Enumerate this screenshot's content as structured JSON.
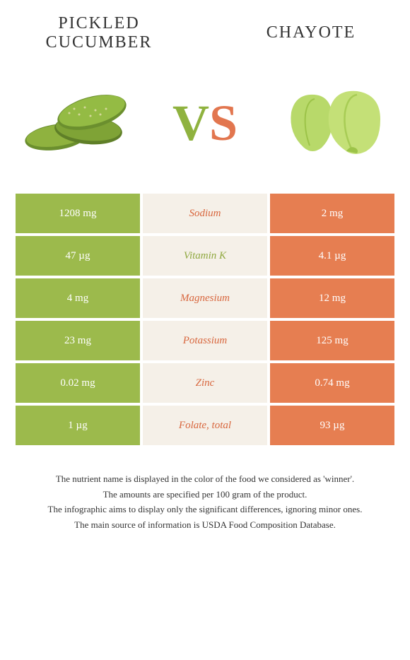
{
  "titles": {
    "left": "Pickled cucumber",
    "right": "Chayote"
  },
  "vs": {
    "v": "V",
    "s": "S"
  },
  "colors": {
    "green_bg": "#9cba4c",
    "orange_bg": "#e67e51",
    "mid_bg": "#f5f0e8",
    "txt_green": "#8fa83f",
    "txt_orange": "#d8663d",
    "vs_v": "#8fb23f",
    "vs_s": "#e2764f"
  },
  "rows": [
    {
      "left": "1208 mg",
      "label": "Sodium",
      "right": "2 mg",
      "left_bg": "green",
      "right_bg": "orange",
      "label_color": "orange"
    },
    {
      "left": "47 µg",
      "label": "Vitamin K",
      "right": "4.1 µg",
      "left_bg": "green",
      "right_bg": "orange",
      "label_color": "green"
    },
    {
      "left": "4 mg",
      "label": "Magnesium",
      "right": "12 mg",
      "left_bg": "green",
      "right_bg": "orange",
      "label_color": "orange"
    },
    {
      "left": "23 mg",
      "label": "Potassium",
      "right": "125 mg",
      "left_bg": "green",
      "right_bg": "orange",
      "label_color": "orange"
    },
    {
      "left": "0.02 mg",
      "label": "Zinc",
      "right": "0.74 mg",
      "left_bg": "green",
      "right_bg": "orange",
      "label_color": "orange"
    },
    {
      "left": "1 µg",
      "label": "Folate, total",
      "right": "93 µg",
      "left_bg": "green",
      "right_bg": "orange",
      "label_color": "orange"
    }
  ],
  "footnotes": [
    "The nutrient name is displayed in the color of the food we considered as 'winner'.",
    "The amounts are specified per 100 gram of the product.",
    "The infographic aims to display only the significant differences, ignoring minor ones.",
    "The main source of information is USDA Food Composition Database."
  ]
}
